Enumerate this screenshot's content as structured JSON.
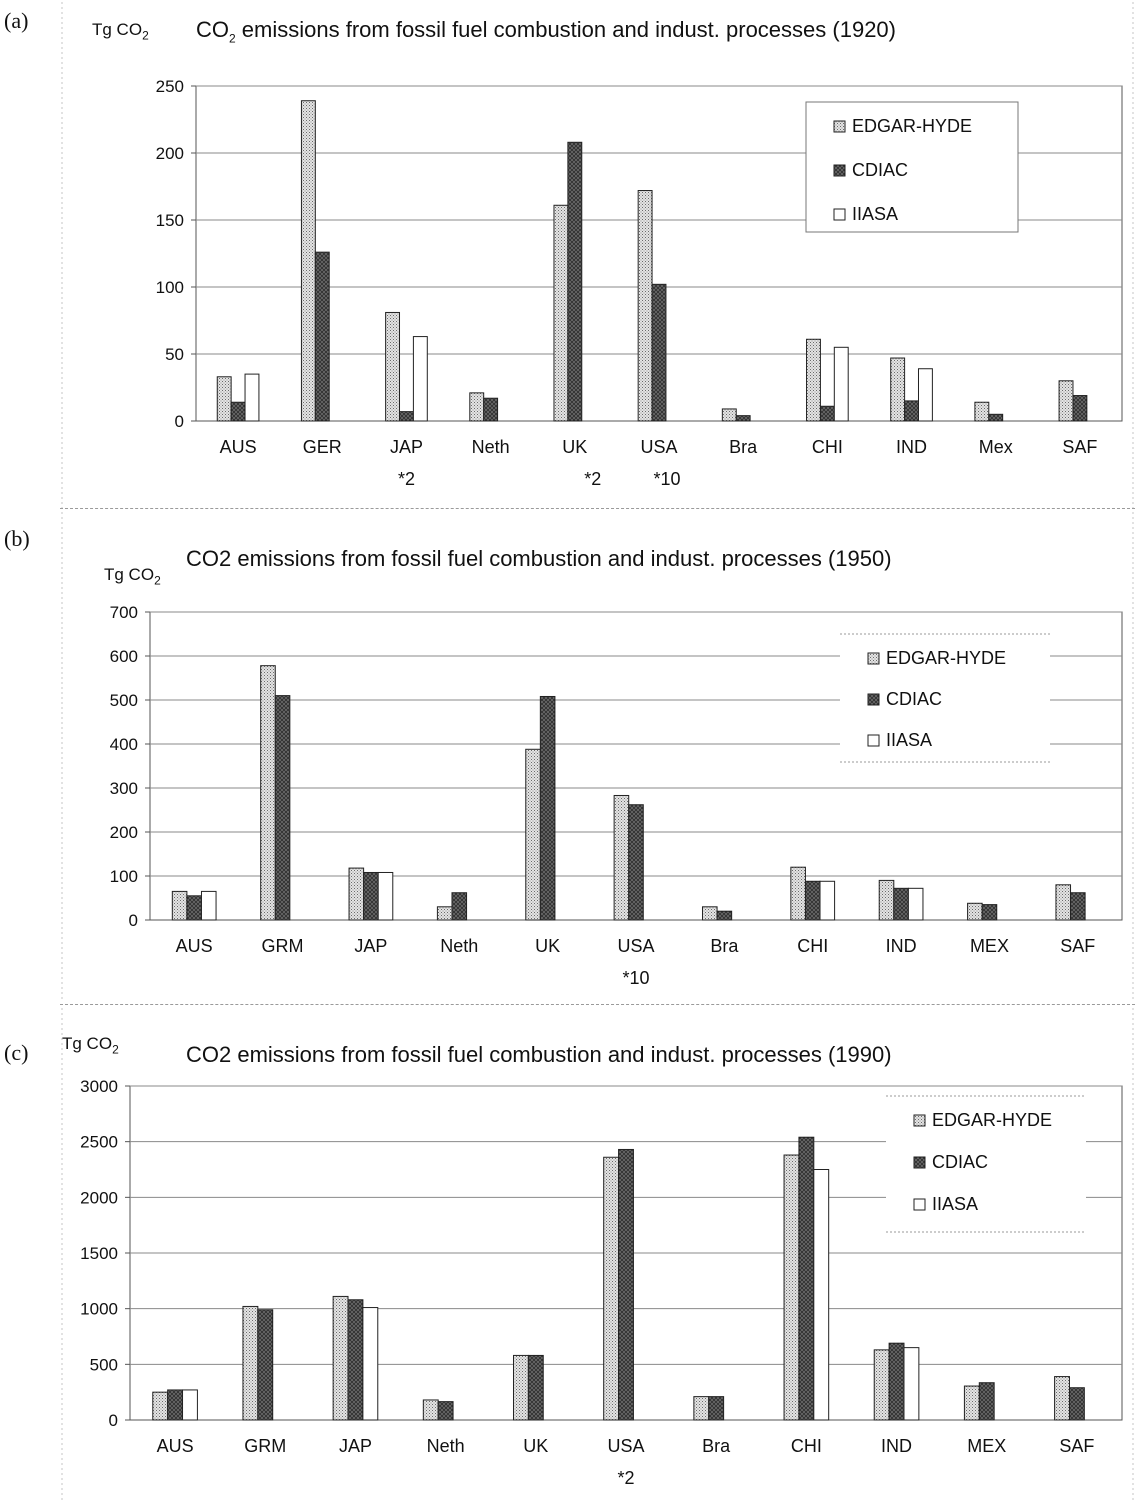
{
  "legend": [
    "EDGAR-HYDE",
    "CDIAC",
    "IIASA"
  ],
  "chart_data": [
    {
      "type": "bar",
      "panel": "(a)",
      "title_main": "CO",
      "title_sub": "2",
      "title_rest": " emissions from fossil fuel combustion and indust. processes (1920)",
      "ylabel_main": "Tg CO",
      "ylabel_sub": "2",
      "ylim": [
        0,
        250
      ],
      "yticks": [
        "0",
        "50",
        "100",
        "150",
        "200",
        "250"
      ],
      "ytick_values": [
        0,
        50,
        100,
        150,
        200,
        250
      ],
      "categories": [
        "AUS",
        "GER",
        "JAP",
        "Neth",
        "UK",
        "USA",
        "Bra",
        "CHI",
        "IND",
        "Mex",
        "SAF"
      ],
      "notes": [
        "",
        "",
        "*2",
        "",
        "*2",
        "*10",
        "",
        "",
        "",
        "",
        ""
      ],
      "series": [
        {
          "name": "EDGAR-HYDE",
          "values": [
            33,
            239,
            81,
            21,
            161,
            172,
            9,
            61,
            47,
            14,
            30
          ]
        },
        {
          "name": "CDIAC",
          "values": [
            14,
            126,
            7,
            17,
            208,
            102,
            4,
            11,
            15,
            5,
            19
          ]
        },
        {
          "name": "IIASA",
          "values": [
            35,
            0,
            63,
            0,
            0,
            0,
            0,
            55,
            39,
            0,
            0
          ]
        }
      ]
    },
    {
      "type": "bar",
      "panel": "(b)",
      "title_main": "CO2 emissions from fossil fuel combustion and indust. processes (1950)",
      "title_sub": "",
      "title_rest": "",
      "ylabel_main": "Tg CO",
      "ylabel_sub": "2",
      "ylim": [
        0,
        700
      ],
      "yticks": [
        "0",
        "100",
        "200",
        "300",
        "400",
        "500",
        "600",
        "700"
      ],
      "ytick_values": [
        0,
        100,
        200,
        300,
        400,
        500,
        600,
        700
      ],
      "categories": [
        "AUS",
        "GRM",
        "JAP",
        "Neth",
        "UK",
        "USA",
        "Bra",
        "CHI",
        "IND",
        "MEX",
        "SAF"
      ],
      "notes": [
        "",
        "",
        "",
        "",
        "",
        "*10",
        "",
        "",
        "",
        "",
        ""
      ],
      "series": [
        {
          "name": "EDGAR-HYDE",
          "values": [
            65,
            578,
            118,
            30,
            388,
            283,
            30,
            120,
            90,
            38,
            80
          ]
        },
        {
          "name": "CDIAC",
          "values": [
            55,
            510,
            108,
            62,
            508,
            262,
            20,
            88,
            72,
            35,
            62
          ]
        },
        {
          "name": "IIASA",
          "values": [
            65,
            0,
            108,
            0,
            0,
            0,
            0,
            88,
            72,
            0,
            0
          ]
        }
      ]
    },
    {
      "type": "bar",
      "panel": "(c)",
      "title_main": "CO2 emissions from fossil fuel combustion and indust. processes (1990)",
      "title_sub": "",
      "title_rest": "",
      "ylabel_main": "Tg CO",
      "ylabel_sub": "2",
      "ylim": [
        0,
        3000
      ],
      "yticks": [
        "0",
        "500",
        "1000",
        "1500",
        "2000",
        "2500",
        "3000"
      ],
      "ytick_values": [
        0,
        500,
        1000,
        1500,
        2000,
        2500,
        3000
      ],
      "categories": [
        "AUS",
        "GRM",
        "JAP",
        "Neth",
        "UK",
        "USA",
        "Bra",
        "CHI",
        "IND",
        "MEX",
        "SAF"
      ],
      "notes": [
        "",
        "",
        "",
        "",
        "",
        "*2",
        "",
        "",
        "",
        "",
        ""
      ],
      "series": [
        {
          "name": "EDGAR-HYDE",
          "values": [
            250,
            1020,
            1110,
            180,
            580,
            2360,
            210,
            2380,
            630,
            305,
            390
          ]
        },
        {
          "name": "CDIAC",
          "values": [
            270,
            990,
            1080,
            165,
            580,
            2430,
            210,
            2540,
            690,
            335,
            290
          ]
        },
        {
          "name": "IIASA",
          "values": [
            270,
            0,
            1010,
            0,
            0,
            0,
            0,
            2250,
            650,
            0,
            0
          ]
        }
      ]
    }
  ]
}
